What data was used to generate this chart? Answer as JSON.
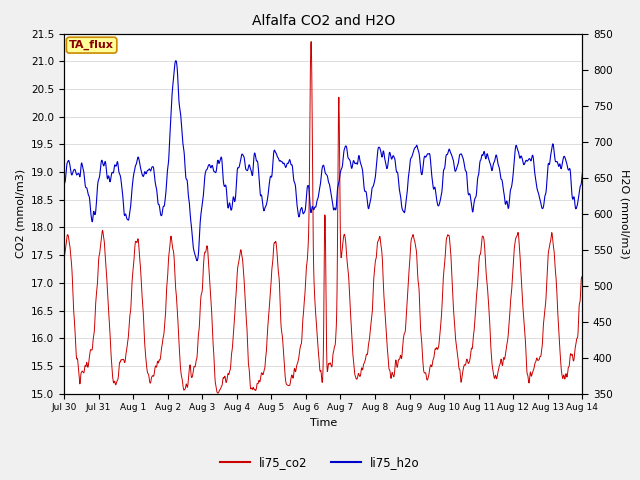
{
  "title": "Alfalfa CO2 and H2O",
  "xlabel": "Time",
  "ylabel_left": "CO2 (mmol/m3)",
  "ylabel_right": "H2O (mmol/m3)",
  "ylim_left": [
    15.0,
    21.5
  ],
  "ylim_right": [
    350,
    850
  ],
  "annotation_text": "TA_flux",
  "annotation_bg": "#FFFF99",
  "annotation_border": "#CC8800",
  "line_co2_color": "#CC0000",
  "line_h2o_color": "#0000CC",
  "legend_co2": "li75_co2",
  "legend_h2o": "li75_h2o",
  "xtick_labels": [
    "Jul 30",
    "Jul 31",
    "Aug 1",
    "Aug 2",
    "Aug 3",
    "Aug 4",
    "Aug 5",
    "Aug 6",
    "Aug 7",
    "Aug 8",
    "Aug 9",
    "Aug 10",
    "Aug 11",
    "Aug 12",
    "Aug 13",
    "Aug 14"
  ],
  "background_color": "#f0f0f0",
  "plot_bg": "#ffffff",
  "grid_color": "#d8d8d8",
  "figsize": [
    6.4,
    4.8
  ],
  "dpi": 100
}
